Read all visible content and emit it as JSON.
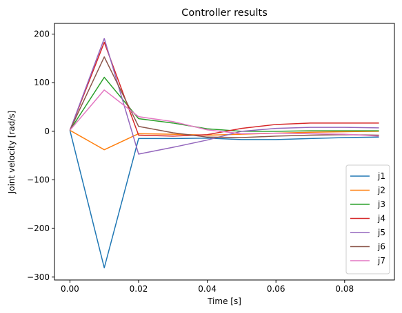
{
  "chart_data": {
    "type": "line",
    "title": "Controller results",
    "xlabel": "Time [s]",
    "ylabel": "Joint velocity [rad/s]",
    "xlim": [
      -0.0045,
      0.0945
    ],
    "ylim": [
      -306,
      222
    ],
    "x_ticks": [
      0.0,
      0.02,
      0.04,
      0.06,
      0.08
    ],
    "x_tick_labels": [
      "0.00",
      "0.02",
      "0.04",
      "0.06",
      "0.08"
    ],
    "y_ticks": [
      -300,
      -200,
      -100,
      0,
      100,
      200
    ],
    "y_tick_labels": [
      "−300",
      "−200",
      "−100",
      "0",
      "100",
      "200"
    ],
    "grid": false,
    "legend_position": "lower-right",
    "x": [
      0.0,
      0.01,
      0.02,
      0.03,
      0.04,
      0.05,
      0.06,
      0.07,
      0.08,
      0.09
    ],
    "series": [
      {
        "name": "j1",
        "color": "#1f77b4",
        "values": [
          2,
          -281,
          -15,
          -15,
          -14,
          -17,
          -17,
          -15,
          -13,
          -12
        ]
      },
      {
        "name": "j2",
        "color": "#ff7f0e",
        "values": [
          2,
          -38,
          -5,
          -6,
          -8,
          -6,
          -4,
          -2,
          -1,
          0
        ]
      },
      {
        "name": "j3",
        "color": "#2ca02c",
        "values": [
          2,
          111,
          26,
          17,
          5,
          0,
          0,
          1,
          1,
          1
        ]
      },
      {
        "name": "j4",
        "color": "#d62728",
        "values": [
          2,
          183,
          -8,
          -10,
          -7,
          6,
          14,
          17,
          17,
          17
        ]
      },
      {
        "name": "j5",
        "color": "#9467bd",
        "values": [
          2,
          191,
          -47,
          -33,
          -18,
          0,
          6,
          8,
          8,
          7
        ]
      },
      {
        "name": "j6",
        "color": "#8c564b",
        "values": [
          2,
          153,
          10,
          -3,
          -12,
          -13,
          -10,
          -8,
          -7,
          -8
        ]
      },
      {
        "name": "j7",
        "color": "#e377c2",
        "values": [
          2,
          85,
          30,
          20,
          3,
          -5,
          -4,
          -5,
          -6,
          -10
        ]
      }
    ]
  }
}
